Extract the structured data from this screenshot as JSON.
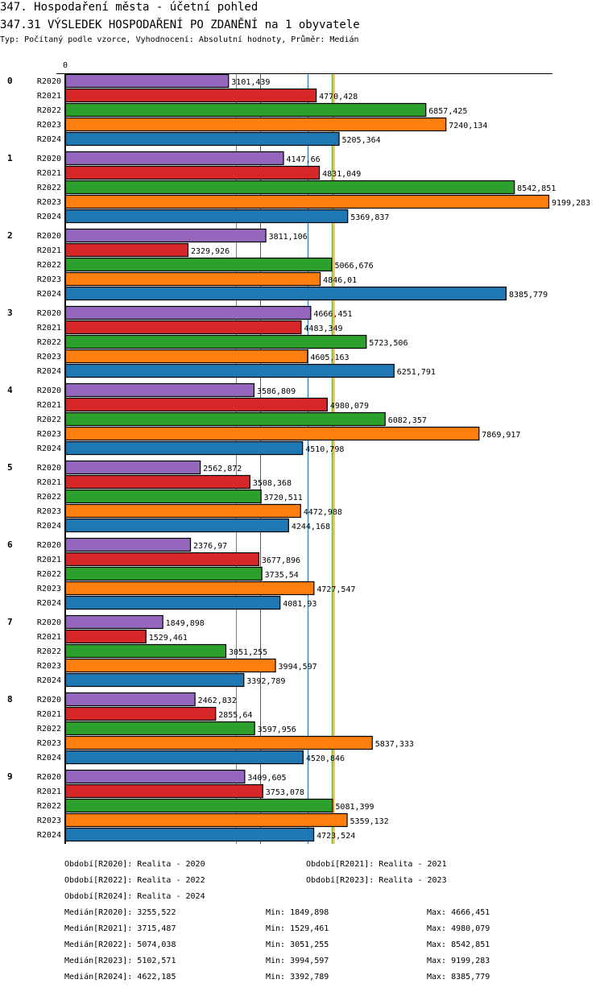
{
  "header": {
    "title": "347. Hospodaření města - účetní pohled",
    "subtitle_title": "347.31 VÝSLEDEK HOSPODAŘENÍ PO ZDANĚNÍ na 1 obyvatele",
    "description": "Typ: Počítaný podle vzorce, Vyhodnocení: Absolutní hodnoty, Průměr: Medián"
  },
  "chart_data": {
    "type": "bar",
    "orientation": "horizontal",
    "title": "347.31 VÝSLEDEK HOSPODAŘENÍ PO ZDANĚNÍ na 1 obyvatele",
    "xlabel": "",
    "ylabel": "",
    "axis_zero_label": "0",
    "xlim": [
      0,
      9199.283
    ],
    "grid": false,
    "categories": [
      "0",
      "1",
      "2",
      "3",
      "4",
      "5",
      "6",
      "7",
      "8",
      "9"
    ],
    "series": [
      {
        "name": "R2020",
        "color": "#9467bd",
        "values": [
          3101.439,
          4147.66,
          3811.106,
          4666.451,
          3586.809,
          2562.872,
          2376.97,
          1849.898,
          2462.832,
          3409.605
        ],
        "labels": [
          "3101,439",
          "4147,66",
          "3811,106",
          "4666,451",
          "3586,809",
          "2562,872",
          "2376,97",
          "1849,898",
          "2462,832",
          "3409,605"
        ]
      },
      {
        "name": "R2021",
        "color": "#d62728",
        "values": [
          4770.428,
          4831.049,
          2329.926,
          4483.349,
          4980.079,
          3508.368,
          3677.896,
          1529.461,
          2855.64,
          3753.078
        ],
        "labels": [
          "4770,428",
          "4831,049",
          "2329,926",
          "4483,349",
          "4980,079",
          "3508,368",
          "3677,896",
          "1529,461",
          "2855,64",
          "3753,078"
        ]
      },
      {
        "name": "R2022",
        "color": "#2ca02c",
        "values": [
          6857.425,
          8542.851,
          5066.676,
          5723.506,
          6082.357,
          3720.511,
          3735.54,
          3051.255,
          3597.956,
          5081.399
        ],
        "labels": [
          "6857,425",
          "8542,851",
          "5066,676",
          "5723,506",
          "6082,357",
          "3720,511",
          "3735,54",
          "3051,255",
          "3597,956",
          "5081,399"
        ]
      },
      {
        "name": "R2023",
        "color": "#ff7f0e",
        "values": [
          7240.134,
          9199.283,
          4846.01,
          4605.163,
          7869.917,
          4472.988,
          4727.547,
          3994.597,
          5837.333,
          5359.132
        ],
        "labels": [
          "7240,134",
          "9199,283",
          "4846,01",
          "4605,163",
          "7869,917",
          "4472,988",
          "4727,547",
          "3994,597",
          "5837,333",
          "5359,132"
        ]
      },
      {
        "name": "R2024",
        "color": "#1f77b4",
        "values": [
          5205.364,
          5369.837,
          8385.779,
          6251.791,
          4510.798,
          4244.168,
          4081.93,
          3392.789,
          4520.846,
          4723.524
        ],
        "labels": [
          "5205,364",
          "5369,837",
          "8385,779",
          "6251,791",
          "4510,798",
          "4244,168",
          "4081,93",
          "3392,789",
          "4520,846",
          "4723,524"
        ]
      }
    ],
    "median_lines": [
      {
        "series": "R2020",
        "value": 3255.522,
        "color": "#9467bd"
      },
      {
        "series": "R2021",
        "value": 3715.487,
        "color": "#d62728"
      },
      {
        "series": "R2022",
        "value": 5074.038,
        "color": "#2ca02c"
      },
      {
        "series": "R2023",
        "value": 5102.571,
        "color": "#ff7f0e"
      },
      {
        "series": "R2024",
        "value": 4622.185,
        "color": "#1f77b4"
      }
    ]
  },
  "legend": {
    "periods": [
      "Období[R2020]: Realita - 2020",
      "Období[R2021]: Realita - 2021",
      "Období[R2022]: Realita - 2022",
      "Období[R2023]: Realita - 2023",
      "Období[R2024]: Realita - 2024"
    ],
    "stats": [
      {
        "median": "Medián[R2020]: 3255,522",
        "min": "Min: 1849,898",
        "max": "Max: 4666,451"
      },
      {
        "median": "Medián[R2021]: 3715,487",
        "min": "Min: 1529,461",
        "max": "Max: 4980,079"
      },
      {
        "median": "Medián[R2022]: 5074,038",
        "min": "Min: 3051,255",
        "max": "Max: 8542,851"
      },
      {
        "median": "Medián[R2023]: 5102,571",
        "min": "Min: 3994,597",
        "max": "Max: 9199,283"
      },
      {
        "median": "Medián[R2024]: 4622,185",
        "min": "Min: 3392,789",
        "max": "Max: 8385,779"
      }
    ]
  }
}
